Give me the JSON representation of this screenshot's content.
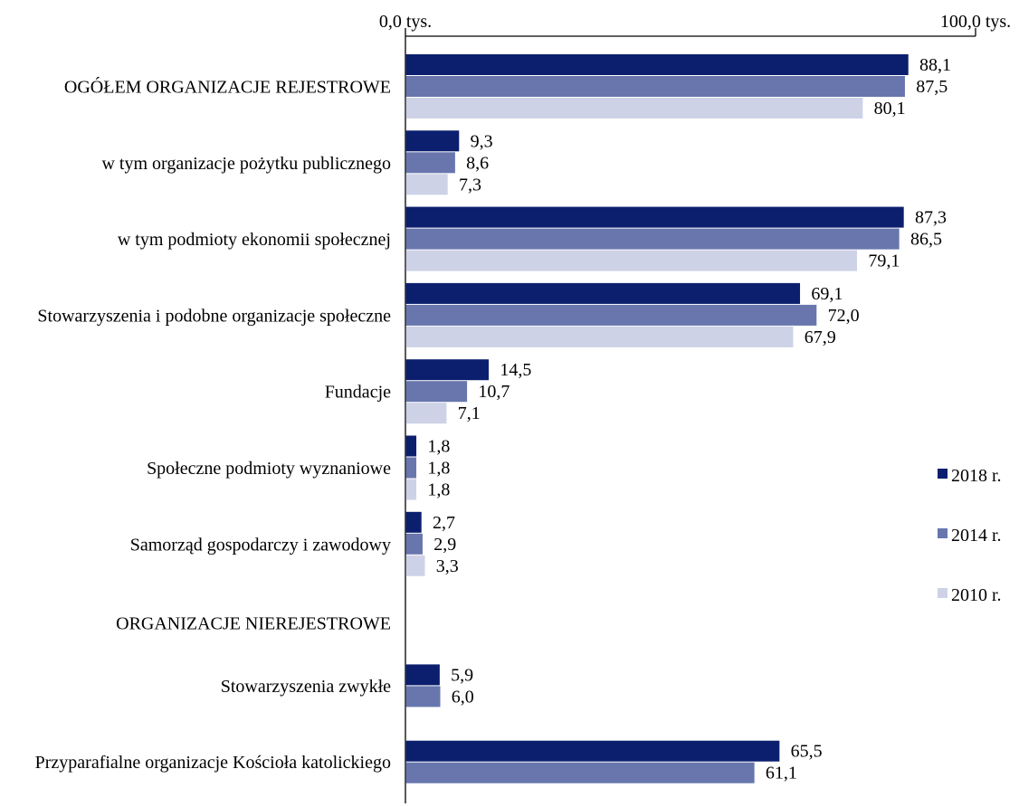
{
  "chart_data": {
    "type": "bar",
    "orientation": "horizontal",
    "title": "",
    "xlabel": "",
    "ylabel": "",
    "xlim": [
      0,
      100
    ],
    "axis_position": "top",
    "x_tick_labels": [
      "0,0 tys.",
      "100,0 tys."
    ],
    "grid": false,
    "legend_position": "right",
    "categories": [
      "OGÓŁEM ORGANIZACJE REJESTROWE",
      "w tym organizacje pożytku publicznego",
      "w tym podmioty ekonomii społecznej",
      "Stowarzyszenia i podobne organizacje społeczne",
      "Fundacje",
      "Społeczne podmioty wyznaniowe",
      "Samorząd gospodarczy i zawodowy",
      "ORGANIZACJE NIEREJESTROWE",
      "Stowarzyszenia zwykłe",
      "Przyparafialne organizacje Kościoła katolickiego"
    ],
    "series": [
      {
        "name": "2018 r.",
        "color": "#0c1f6e",
        "values": [
          88.1,
          9.3,
          87.3,
          69.1,
          14.5,
          1.8,
          2.7,
          null,
          5.9,
          65.5
        ],
        "labels": [
          "88,1",
          "9,3",
          "87,3",
          "69,1",
          "14,5",
          "1,8",
          "2,7",
          null,
          "5,9",
          "65,5"
        ]
      },
      {
        "name": "2014 r.",
        "color": "#6876ad",
        "values": [
          87.5,
          8.6,
          86.5,
          72.0,
          10.7,
          1.8,
          2.9,
          null,
          6.0,
          61.1
        ],
        "labels": [
          "87,5",
          "8,6",
          "86,5",
          "72,0",
          "10,7",
          "1,8",
          "2,9",
          null,
          "6,0",
          "61,1"
        ]
      },
      {
        "name": "2010 r.",
        "color": "#cdd2e7",
        "values": [
          80.1,
          7.3,
          79.1,
          67.9,
          7.1,
          1.8,
          3.3,
          null,
          null,
          null
        ],
        "labels": [
          "80,1",
          "7,3",
          "79,1",
          "67,9",
          "7,1",
          "1,8",
          "3,3",
          null,
          null,
          null
        ]
      }
    ]
  }
}
